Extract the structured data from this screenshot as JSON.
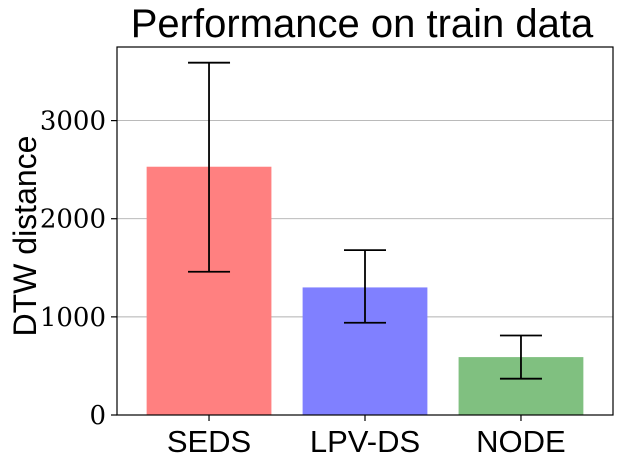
{
  "chart_data": {
    "type": "bar",
    "title": "Performance on train data",
    "xlabel": "",
    "ylabel": "DTW distance",
    "categories": [
      "SEDS",
      "LPV-DS",
      "NODE"
    ],
    "values": [
      2530,
      1300,
      590
    ],
    "error_low": [
      1460,
      940,
      370
    ],
    "error_high": [
      3590,
      1680,
      810
    ],
    "colors": [
      "#ff8080",
      "#8080ff",
      "#80c080"
    ],
    "ylim": [
      0,
      3750
    ],
    "yticks": [
      0,
      1000,
      2000,
      3000
    ],
    "ytick_labels": [
      "0",
      "1000",
      "2000",
      "3000"
    ],
    "grid": "y",
    "legend": "none"
  }
}
